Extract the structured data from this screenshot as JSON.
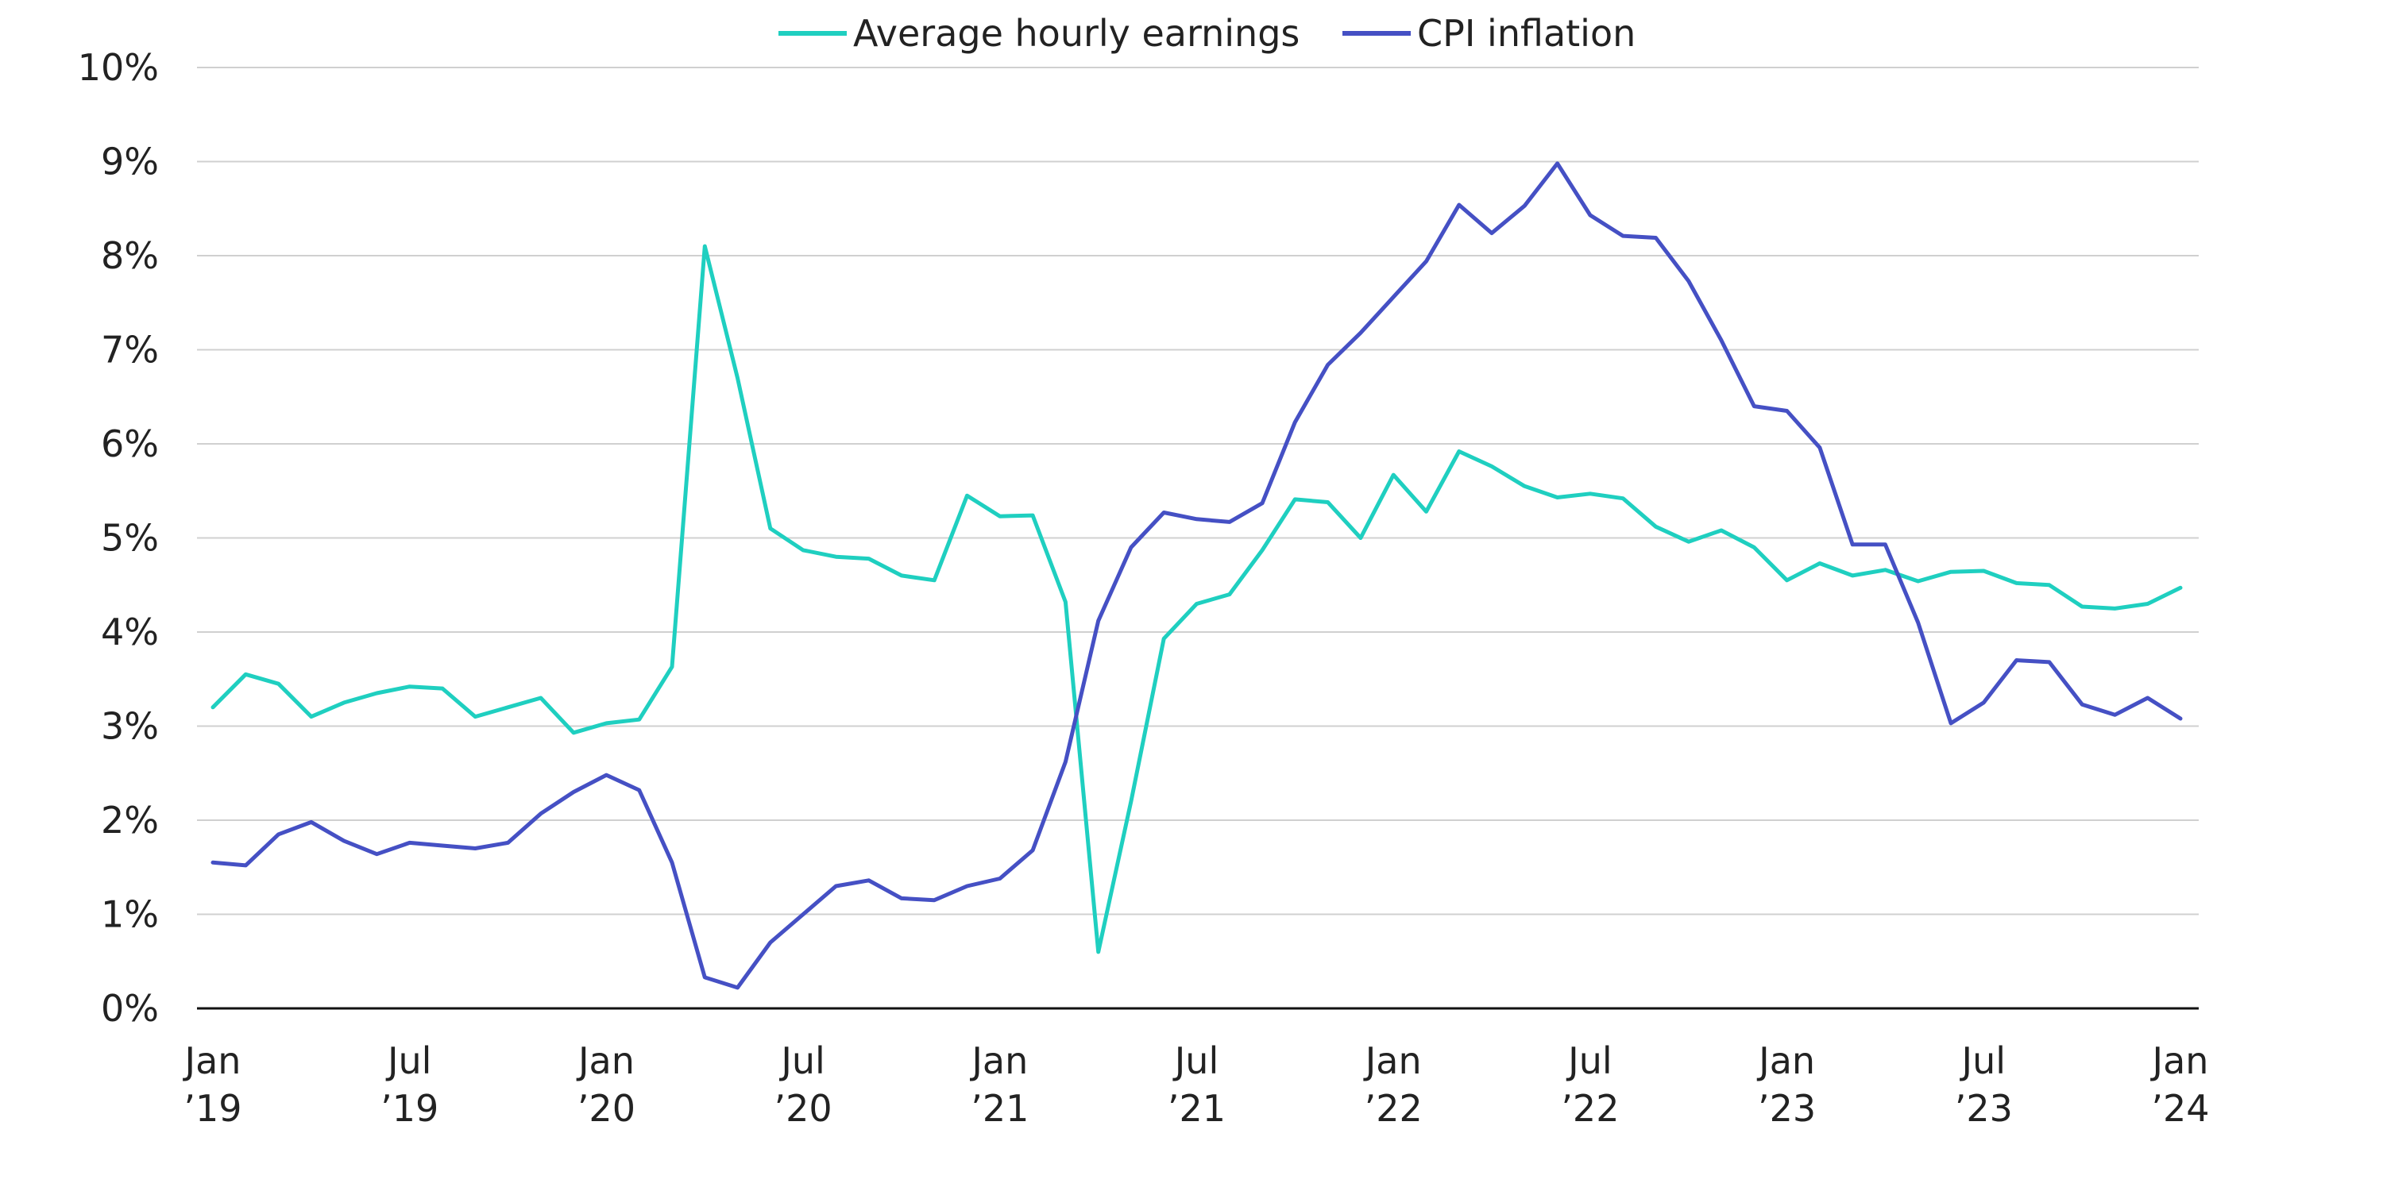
{
  "chart_data": {
    "type": "line",
    "title": "",
    "xlabel": "",
    "ylabel": "",
    "ylim": [
      0,
      10
    ],
    "y_ticks": [
      {
        "value": 0,
        "label": "0%"
      },
      {
        "value": 1,
        "label": "1%"
      },
      {
        "value": 2,
        "label": "2%"
      },
      {
        "value": 3,
        "label": "3%"
      },
      {
        "value": 4,
        "label": "4%"
      },
      {
        "value": 5,
        "label": "5%"
      },
      {
        "value": 6,
        "label": "6%"
      },
      {
        "value": 7,
        "label": "7%"
      },
      {
        "value": 8,
        "label": "8%"
      },
      {
        "value": 9,
        "label": "9%"
      },
      {
        "value": 10,
        "label": "10%"
      }
    ],
    "x_ticks": [
      {
        "month": "2019-01",
        "line1": "Jan",
        "line2": "’19"
      },
      {
        "month": "2019-07",
        "line1": "Jul",
        "line2": "’19"
      },
      {
        "month": "2020-01",
        "line1": "Jan",
        "line2": "’20"
      },
      {
        "month": "2020-07",
        "line1": "Jul",
        "line2": "’20"
      },
      {
        "month": "2021-01",
        "line1": "Jan",
        "line2": "’21"
      },
      {
        "month": "2021-07",
        "line1": "Jul",
        "line2": "’21"
      },
      {
        "month": "2022-01",
        "line1": "Jan",
        "line2": "’22"
      },
      {
        "month": "2022-07",
        "line1": "Jul",
        "line2": "’22"
      },
      {
        "month": "2023-01",
        "line1": "Jan",
        "line2": "’23"
      },
      {
        "month": "2023-07",
        "line1": "Jul",
        "line2": "’23"
      },
      {
        "month": "2024-01",
        "line1": "Jan",
        "line2": "’24"
      }
    ],
    "x": [
      "2019-01",
      "2019-02",
      "2019-03",
      "2019-04",
      "2019-05",
      "2019-06",
      "2019-07",
      "2019-08",
      "2019-09",
      "2019-10",
      "2019-11",
      "2019-12",
      "2020-01",
      "2020-02",
      "2020-03",
      "2020-04",
      "2020-05",
      "2020-06",
      "2020-07",
      "2020-08",
      "2020-09",
      "2020-10",
      "2020-11",
      "2020-12",
      "2021-01",
      "2021-02",
      "2021-03",
      "2021-04",
      "2021-05",
      "2021-06",
      "2021-07",
      "2021-08",
      "2021-09",
      "2021-10",
      "2021-11",
      "2021-12",
      "2022-01",
      "2022-02",
      "2022-03",
      "2022-04",
      "2022-05",
      "2022-06",
      "2022-07",
      "2022-08",
      "2022-09",
      "2022-10",
      "2022-11",
      "2022-12",
      "2023-01",
      "2023-02",
      "2023-03",
      "2023-04",
      "2023-05",
      "2023-06",
      "2023-07",
      "2023-08",
      "2023-09",
      "2023-10",
      "2023-11",
      "2023-12",
      "2024-01"
    ],
    "series": [
      {
        "name": "Average hourly earnings",
        "color": "#1fcfc0",
        "values": [
          3.2,
          3.55,
          3.45,
          3.1,
          3.25,
          3.35,
          3.42,
          3.4,
          3.1,
          3.2,
          3.3,
          2.93,
          3.03,
          3.07,
          3.63,
          8.1,
          6.7,
          5.1,
          4.87,
          4.8,
          4.78,
          4.6,
          4.55,
          5.45,
          5.23,
          5.24,
          4.32,
          0.6,
          2.2,
          3.93,
          4.3,
          4.4,
          4.87,
          5.41,
          5.38,
          5.0,
          5.67,
          5.28,
          5.92,
          5.76,
          5.55,
          5.43,
          5.47,
          5.42,
          5.12,
          4.96,
          5.08,
          4.9,
          4.55,
          4.73,
          4.6,
          4.66,
          4.54,
          4.64,
          4.65,
          4.52,
          4.5,
          4.27,
          4.25,
          4.3,
          4.47
        ]
      },
      {
        "name": "CPI inflation",
        "color": "#4550c4",
        "values": [
          1.55,
          1.52,
          1.85,
          1.98,
          1.78,
          1.64,
          1.76,
          1.73,
          1.7,
          1.76,
          2.07,
          2.3,
          2.48,
          2.32,
          1.55,
          0.33,
          0.22,
          0.7,
          1.0,
          1.3,
          1.36,
          1.17,
          1.15,
          1.3,
          1.38,
          1.68,
          2.62,
          4.12,
          4.9,
          5.27,
          5.2,
          5.17,
          5.37,
          6.23,
          6.84,
          7.18,
          7.56,
          7.94,
          8.54,
          8.24,
          8.53,
          8.98,
          8.43,
          8.21,
          8.19,
          7.73,
          7.1,
          6.4,
          6.35,
          5.96,
          4.93,
          4.93,
          4.1,
          3.03,
          3.25,
          3.7,
          3.68,
          3.23,
          3.12,
          3.3,
          3.08
        ]
      }
    ],
    "legend": {
      "placement": "top-center"
    },
    "grid": {
      "y": true,
      "x": false
    }
  }
}
